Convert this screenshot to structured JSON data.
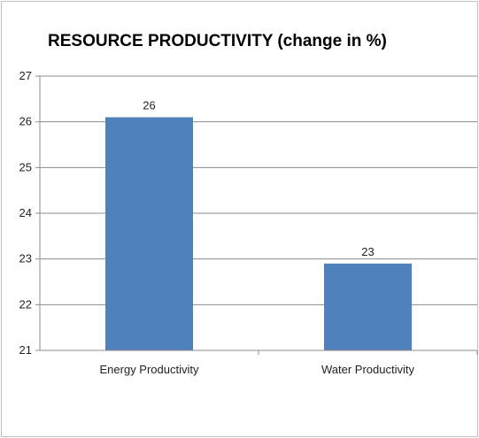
{
  "chart_data": {
    "type": "bar",
    "title": "RESOURCE PRODUCTIVITY (change in %)",
    "xlabel": "",
    "ylabel": "",
    "categories": [
      "Energy Productivity",
      "Water Productivity"
    ],
    "values": [
      26.1,
      22.9
    ],
    "data_labels": [
      "26",
      "23"
    ],
    "ylim": [
      21,
      27
    ],
    "yticks": [
      "21",
      "22",
      "23",
      "24",
      "25",
      "26",
      "27"
    ],
    "grid": true,
    "legend": "none",
    "colors": {
      "bar": "#4f81bd",
      "grid": "#8c8c8c",
      "axis": "#8c8c8c"
    }
  }
}
